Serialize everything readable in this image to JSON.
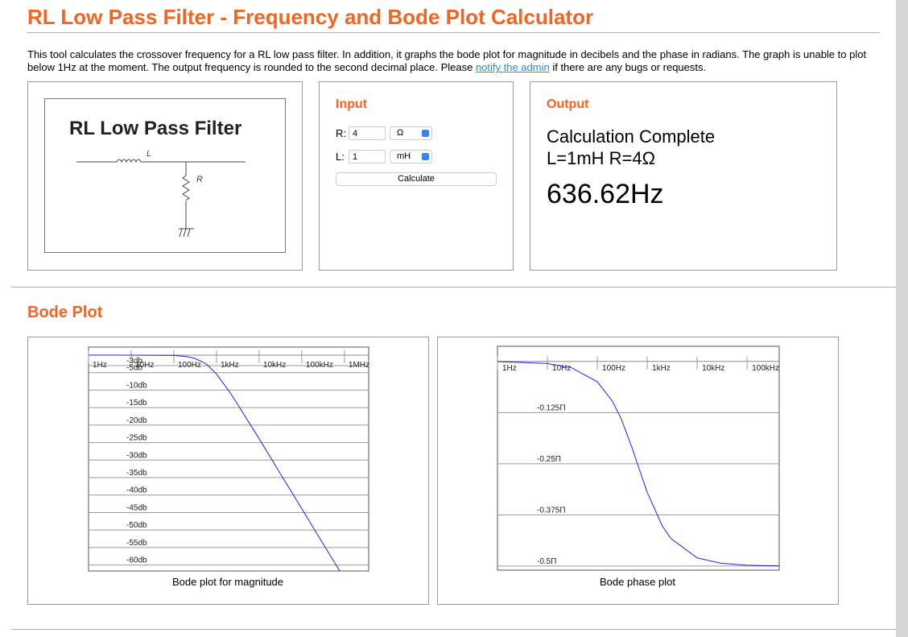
{
  "header": {
    "title": "RL Low Pass Filter - Frequency and Bode Plot Calculator"
  },
  "description": {
    "text": "This tool calculates the crossover frequency for a RL low pass filter. In addition, it graphs the bode plot for magnitude in decibels and the phase in radians. The graph is unable to plot below 1Hz at the moment. The output frequency is rounded to the second decimal place. Please ",
    "link": "notify the admin",
    "text_after": " if there are any bugs or requests."
  },
  "circuit": {
    "title": "RL Low Pass Filter",
    "inductor_label": "L",
    "resistor_label": "R"
  },
  "input": {
    "title": "Input",
    "fields": [
      {
        "label": "R:",
        "value": 4,
        "unit": "Ω"
      },
      {
        "label": "L:",
        "value": 1,
        "unit": "mH"
      }
    ],
    "button": "Calculate"
  },
  "output": {
    "title": "Output",
    "status": "Calculation Complete",
    "parameters": "L=1mH R=4Ω",
    "result": "636.62Hz"
  },
  "bode_section": {
    "title": "Bode Plot"
  },
  "chart_data": [
    {
      "type": "line",
      "caption": "Bode plot for magnitude",
      "xscale": "log",
      "grid": true,
      "x": [
        1,
        10,
        100,
        200,
        300,
        500,
        636.62,
        1000,
        2000,
        3000,
        10000,
        30000,
        100000,
        300000,
        1000000
      ],
      "series": [
        {
          "color": "#1f1fff",
          "values": [
            0,
            0,
            -0.1,
            -0.41,
            -0.87,
            -2.09,
            -3.01,
            -5.4,
            -10.4,
            -13.7,
            -23.9,
            -33.5,
            -43.9,
            -53.5,
            -63.9
          ]
        }
      ],
      "xlim": [
        1,
        3700000
      ],
      "ylim": [
        -61.7,
        2.3
      ],
      "xticks": [
        {
          "value": 1,
          "label": "1Hz"
        },
        {
          "value": 10,
          "label": "10Hz"
        },
        {
          "value": 100,
          "label": "100Hz"
        },
        {
          "value": 1000,
          "label": "1kHz"
        },
        {
          "value": 10000,
          "label": "10kHz"
        },
        {
          "value": 100000,
          "label": "100kHz"
        },
        {
          "value": 1000000,
          "label": "1MHz"
        }
      ],
      "yticks": [
        {
          "value": -3,
          "label": "-3db"
        },
        {
          "value": -5,
          "label": "-5db"
        },
        {
          "value": -10,
          "label": "-10db"
        },
        {
          "value": -15,
          "label": "-15db"
        },
        {
          "value": -20,
          "label": "-20db"
        },
        {
          "value": -25,
          "label": "-25db"
        },
        {
          "value": -30,
          "label": "-30db"
        },
        {
          "value": -35,
          "label": "-35db"
        },
        {
          "value": -40,
          "label": "-40db"
        },
        {
          "value": -45,
          "label": "-45db"
        },
        {
          "value": -50,
          "label": "-50db"
        },
        {
          "value": -55,
          "label": "-55db"
        },
        {
          "value": -60,
          "label": "-60db"
        }
      ]
    },
    {
      "type": "line",
      "caption": "Bode phase plot",
      "xscale": "log",
      "grid": true,
      "x": [
        1,
        10,
        30,
        100,
        200,
        300,
        500,
        636.62,
        1000,
        2000,
        3000,
        10000,
        30000,
        100000,
        440000
      ],
      "series": [
        {
          "color": "#1f1fff",
          "values": [
            -0.0005,
            -0.005,
            -0.015,
            -0.0496,
            -0.097,
            -0.14,
            -0.212,
            -0.25,
            -0.32,
            -0.402,
            -0.433,
            -0.48,
            -0.493,
            -0.498,
            -0.4995
          ]
        }
      ],
      "xlim": [
        1,
        440000
      ],
      "ylim": [
        -0.51,
        0.037
      ],
      "xticks": [
        {
          "value": 1,
          "label": "1Hz"
        },
        {
          "value": 10,
          "label": "10Hz"
        },
        {
          "value": 100,
          "label": "100Hz"
        },
        {
          "value": 1000,
          "label": "1kHz"
        },
        {
          "value": 10000,
          "label": "10kHz"
        },
        {
          "value": 100000,
          "label": "100kHz"
        }
      ],
      "yticks": [
        {
          "value": -0.125,
          "label": "-0.125Π"
        },
        {
          "value": -0.25,
          "label": "-0.25Π"
        },
        {
          "value": -0.375,
          "label": "-0.375Π"
        },
        {
          "value": -0.5,
          "label": "-0.5Π"
        }
      ]
    }
  ]
}
